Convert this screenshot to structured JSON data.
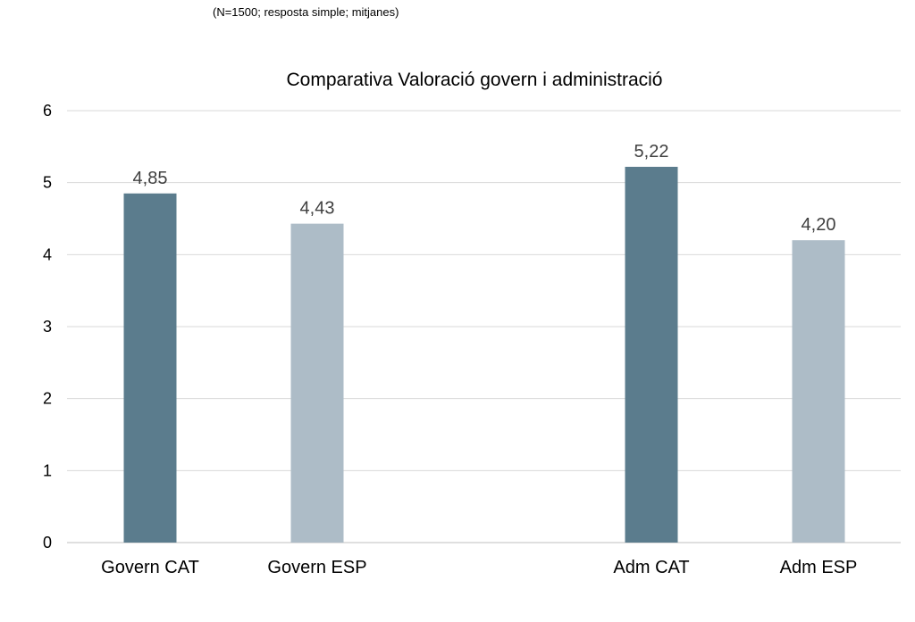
{
  "note": "(N=1500; resposta simple; mitjanes)",
  "colors": {
    "cat": "#5b7c8d",
    "esp": "#adbcc7",
    "grid": "#d9d9d9",
    "label": "#404040"
  },
  "chart_data": {
    "type": "bar",
    "title": "Comparativa Valoració govern i administració",
    "xlabel": "",
    "ylabel": "",
    "ylim": [
      0,
      6
    ],
    "yticks": [
      "0",
      "1",
      "2",
      "3",
      "4",
      "5",
      "6"
    ],
    "grid": true,
    "legend": "none",
    "categories": [
      "Govern CAT",
      "Govern ESP",
      "Adm CAT",
      "Adm ESP"
    ],
    "values": [
      4.85,
      4.43,
      5.22,
      4.2
    ],
    "value_labels": [
      "4,85",
      "4,43",
      "5,22",
      "4,20"
    ]
  }
}
